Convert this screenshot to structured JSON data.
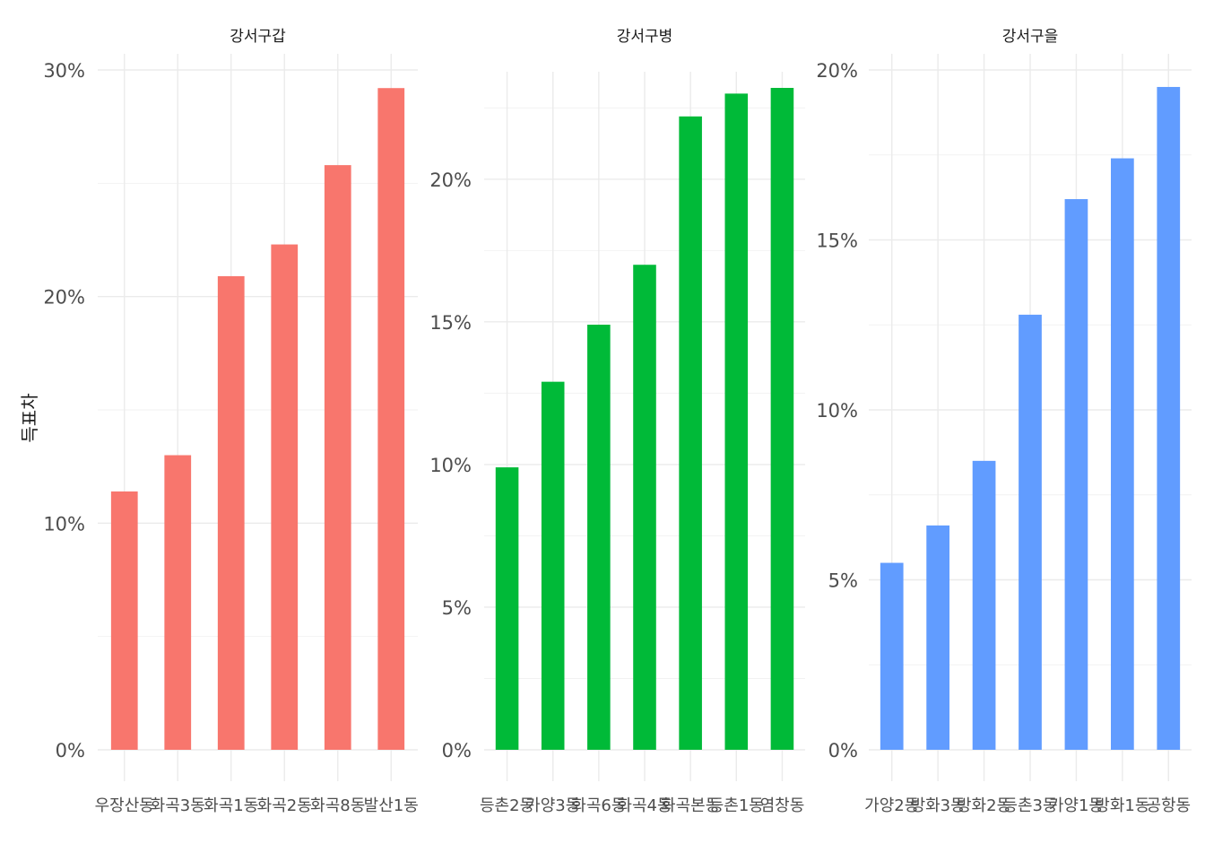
{
  "ylabel": "득표차",
  "chart_data": [
    {
      "type": "bar",
      "title": "강서구갑",
      "color": "#F8766D",
      "categories": [
        "우장산동",
        "화곡3동",
        "화곡1동",
        "화곡2동",
        "화곡8동",
        "발산1동"
      ],
      "values": [
        0.114,
        0.13,
        0.209,
        0.223,
        0.258,
        0.292
      ],
      "ylim": [
        0,
        0.3
      ],
      "yticks": [
        0,
        0.1,
        0.2,
        0.3
      ],
      "ytick_labels": [
        "0%",
        "10%",
        "20%",
        "30%"
      ]
    },
    {
      "type": "bar",
      "title": "강서구병",
      "color": "#00BA38",
      "categories": [
        "등촌2동",
        "가양3동",
        "화곡6동",
        "화곡4동",
        "화곡본동",
        "등촌1동",
        "염창동"
      ],
      "values": [
        0.099,
        0.129,
        0.149,
        0.17,
        0.222,
        0.23,
        0.232
      ],
      "ylim": [
        0,
        0.232
      ],
      "yticks": [
        0,
        0.05,
        0.1,
        0.15,
        0.2
      ],
      "ytick_labels": [
        "0%",
        "5%",
        "10%",
        "15%",
        "20%"
      ]
    },
    {
      "type": "bar",
      "title": "강서구을",
      "color": "#619CFF",
      "categories": [
        "가양2동",
        "방화3동",
        "방화2동",
        "등촌3동",
        "가양1동",
        "방화1동",
        "공항동"
      ],
      "values": [
        0.055,
        0.066,
        0.085,
        0.128,
        0.162,
        0.174,
        0.195
      ],
      "ylim": [
        0,
        0.2
      ],
      "yticks": [
        0,
        0.05,
        0.1,
        0.15,
        0.2
      ],
      "ytick_labels": [
        "0%",
        "5%",
        "10%",
        "15%",
        "20%"
      ]
    }
  ]
}
